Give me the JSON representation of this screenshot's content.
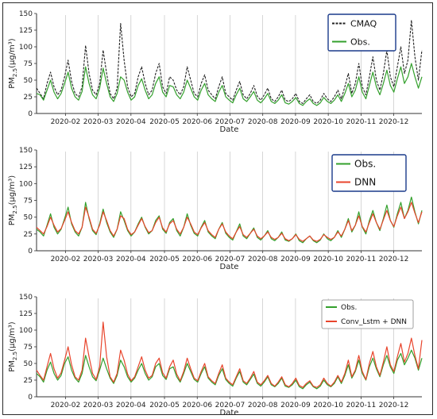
{
  "chart_data": [
    {
      "type": "line",
      "ylabel": "PM2.5(μg/m³)",
      "ylabel_main": "PM",
      "ylabel_sub": "2.5",
      "ylabel_units": "(μg/m³)",
      "xlabel": "Date",
      "ylim": [
        0,
        150
      ],
      "yticks": [
        "0",
        "25",
        "50",
        "75",
        "100",
        "125",
        "150"
      ],
      "x_ticks": [
        "2020-02",
        "2020-03",
        "2020-04",
        "2020-05",
        "2020-06",
        "2020-07",
        "2020-08",
        "2020-09",
        "2020-10",
        "2020-11",
        "2020-12"
      ],
      "legend_position": "top-right",
      "series": [
        {
          "name": "CMAQ",
          "color": "#222222",
          "style": "dashed",
          "values": [
            38,
            30,
            22,
            45,
            62,
            40,
            28,
            35,
            55,
            80,
            48,
            30,
            25,
            40,
            102,
            60,
            35,
            28,
            45,
            95,
            60,
            30,
            22,
            38,
            135,
            80,
            40,
            25,
            30,
            55,
            70,
            45,
            28,
            35,
            60,
            75,
            40,
            30,
            55,
            50,
            35,
            28,
            40,
            70,
            50,
            30,
            25,
            45,
            58,
            35,
            28,
            22,
            40,
            55,
            30,
            25,
            20,
            35,
            48,
            28,
            22,
            30,
            42,
            26,
            20,
            28,
            38,
            22,
            18,
            25,
            35,
            20,
            18,
            22,
            30,
            18,
            15,
            22,
            28,
            18,
            15,
            20,
            30,
            22,
            18,
            25,
            35,
            22,
            40,
            60,
            30,
            45,
            75,
            40,
            28,
            55,
            85,
            50,
            35,
            60,
            95,
            55,
            40,
            70,
            100,
            60,
            80,
            140,
            85,
            50,
            95
          ]
        },
        {
          "name": "Obs.",
          "color": "#33a02c",
          "style": "solid",
          "values": [
            30,
            28,
            20,
            35,
            50,
            32,
            22,
            30,
            45,
            62,
            38,
            25,
            20,
            33,
            70,
            45,
            28,
            22,
            38,
            68,
            45,
            25,
            18,
            30,
            55,
            50,
            32,
            20,
            25,
            42,
            52,
            35,
            22,
            28,
            45,
            55,
            32,
            25,
            42,
            40,
            28,
            22,
            32,
            50,
            38,
            25,
            20,
            35,
            45,
            28,
            22,
            18,
            32,
            42,
            25,
            20,
            16,
            28,
            38,
            22,
            18,
            25,
            33,
            20,
            16,
            22,
            30,
            18,
            15,
            20,
            28,
            16,
            14,
            18,
            24,
            15,
            12,
            18,
            22,
            15,
            12,
            16,
            24,
            18,
            15,
            20,
            28,
            18,
            30,
            45,
            25,
            35,
            55,
            32,
            22,
            42,
            62,
            40,
            28,
            45,
            65,
            42,
            32,
            52,
            70,
            45,
            55,
            75,
            55,
            38,
            55
          ]
        }
      ]
    },
    {
      "type": "line",
      "ylabel": "PM2.5(μg/m³)",
      "ylabel_main": "PM",
      "ylabel_sub": "2.5",
      "ylabel_units": "(μg/m³)",
      "xlabel": "Date",
      "ylim": [
        0,
        150
      ],
      "yticks": [
        "0",
        "25",
        "50",
        "75",
        "100",
        "125",
        "150"
      ],
      "x_ticks": [
        "2020-02",
        "2020-03",
        "2020-04",
        "2020-05",
        "2020-06",
        "2020-07",
        "2020-08",
        "2020-09",
        "2020-10",
        "2020-11",
        "2020-12"
      ],
      "legend_position": "top-right",
      "series": [
        {
          "name": "Obs.",
          "color": "#33a02c",
          "style": "solid",
          "values": [
            32,
            28,
            22,
            38,
            55,
            35,
            25,
            32,
            48,
            65,
            40,
            28,
            22,
            35,
            72,
            48,
            30,
            24,
            40,
            62,
            42,
            28,
            20,
            32,
            58,
            45,
            30,
            22,
            28,
            40,
            50,
            35,
            25,
            30,
            45,
            52,
            32,
            26,
            42,
            48,
            30,
            22,
            35,
            55,
            38,
            26,
            22,
            35,
            45,
            28,
            22,
            18,
            32,
            42,
            26,
            20,
            16,
            28,
            40,
            22,
            18,
            26,
            34,
            20,
            16,
            22,
            30,
            18,
            15,
            20,
            28,
            16,
            14,
            18,
            25,
            15,
            12,
            18,
            22,
            15,
            12,
            16,
            25,
            18,
            15,
            20,
            30,
            20,
            32,
            48,
            28,
            38,
            58,
            35,
            25,
            45,
            60,
            42,
            30,
            48,
            68,
            45,
            35,
            55,
            72,
            48,
            60,
            80,
            58,
            40,
            60
          ]
        },
        {
          "name": "DNN",
          "color": "#e8452c",
          "style": "solid",
          "values": [
            35,
            30,
            25,
            36,
            50,
            38,
            28,
            33,
            45,
            58,
            42,
            30,
            25,
            35,
            65,
            50,
            32,
            26,
            38,
            58,
            45,
            30,
            22,
            32,
            52,
            48,
            32,
            24,
            28,
            38,
            48,
            36,
            27,
            30,
            42,
            50,
            34,
            28,
            40,
            45,
            32,
            25,
            35,
            50,
            40,
            28,
            24,
            34,
            42,
            30,
            24,
            20,
            32,
            40,
            28,
            22,
            18,
            28,
            36,
            24,
            20,
            26,
            32,
            22,
            18,
            22,
            28,
            20,
            17,
            20,
            26,
            18,
            15,
            18,
            24,
            17,
            14,
            18,
            22,
            16,
            14,
            17,
            24,
            20,
            17,
            20,
            28,
            22,
            32,
            45,
            30,
            38,
            52,
            36,
            28,
            42,
            55,
            42,
            32,
            46,
            60,
            45,
            36,
            52,
            65,
            48,
            58,
            72,
            56,
            42,
            58
          ]
        }
      ]
    },
    {
      "type": "line",
      "ylabel": "PM2.5(μg/m³)",
      "ylabel_main": "PM",
      "ylabel_sub": "2.5",
      "ylabel_units": "(μg/m³)",
      "xlabel": "Date",
      "ylim": [
        0,
        150
      ],
      "yticks": [
        "0",
        "25",
        "50",
        "75",
        "100",
        "125",
        "150"
      ],
      "x_ticks": [
        "2020-02",
        "2020-03",
        "2020-04",
        "2020-05",
        "2020-06",
        "2020-07",
        "2020-08",
        "2020-09",
        "2020-10",
        "2020-11",
        "2020-12"
      ],
      "legend_position": "top-right",
      "series": [
        {
          "name": "Obs.",
          "color": "#33a02c",
          "style": "solid",
          "values": [
            35,
            30,
            22,
            40,
            52,
            35,
            25,
            32,
            50,
            60,
            40,
            28,
            22,
            35,
            62,
            45,
            30,
            24,
            40,
            58,
            42,
            28,
            20,
            32,
            55,
            45,
            30,
            22,
            28,
            40,
            50,
            35,
            25,
            30,
            45,
            50,
            32,
            26,
            42,
            45,
            30,
            22,
            35,
            50,
            38,
            26,
            22,
            35,
            45,
            28,
            22,
            18,
            32,
            42,
            26,
            20,
            16,
            28,
            38,
            22,
            18,
            26,
            34,
            20,
            16,
            22,
            30,
            18,
            15,
            20,
            28,
            16,
            14,
            18,
            25,
            15,
            12,
            18,
            22,
            15,
            12,
            16,
            25,
            18,
            15,
            20,
            30,
            20,
            32,
            48,
            28,
            38,
            55,
            35,
            25,
            45,
            58,
            42,
            30,
            48,
            62,
            45,
            35,
            55,
            65,
            48,
            58,
            70,
            58,
            40,
            58
          ]
        },
        {
          "name": "Conv_Lstm + DNN",
          "color": "#e8452c",
          "style": "solid",
          "values": [
            40,
            32,
            25,
            45,
            65,
            42,
            28,
            36,
            55,
            75,
            48,
            30,
            25,
            40,
            88,
            60,
            35,
            26,
            45,
            112,
            60,
            30,
            22,
            35,
            70,
            55,
            34,
            24,
            30,
            45,
            60,
            40,
            28,
            32,
            50,
            58,
            36,
            28,
            45,
            55,
            34,
            24,
            38,
            58,
            42,
            28,
            24,
            38,
            50,
            30,
            24,
            20,
            35,
            48,
            28,
            22,
            18,
            30,
            42,
            24,
            20,
            28,
            38,
            22,
            18,
            24,
            32,
            20,
            16,
            22,
            30,
            18,
            15,
            20,
            28,
            17,
            14,
            20,
            24,
            16,
            14,
            18,
            28,
            20,
            16,
            22,
            32,
            22,
            35,
            55,
            30,
            40,
            62,
            38,
            26,
            50,
            68,
            45,
            32,
            52,
            75,
            48,
            38,
            60,
            80,
            52,
            65,
            88,
            62,
            42,
            85
          ]
        }
      ]
    }
  ]
}
